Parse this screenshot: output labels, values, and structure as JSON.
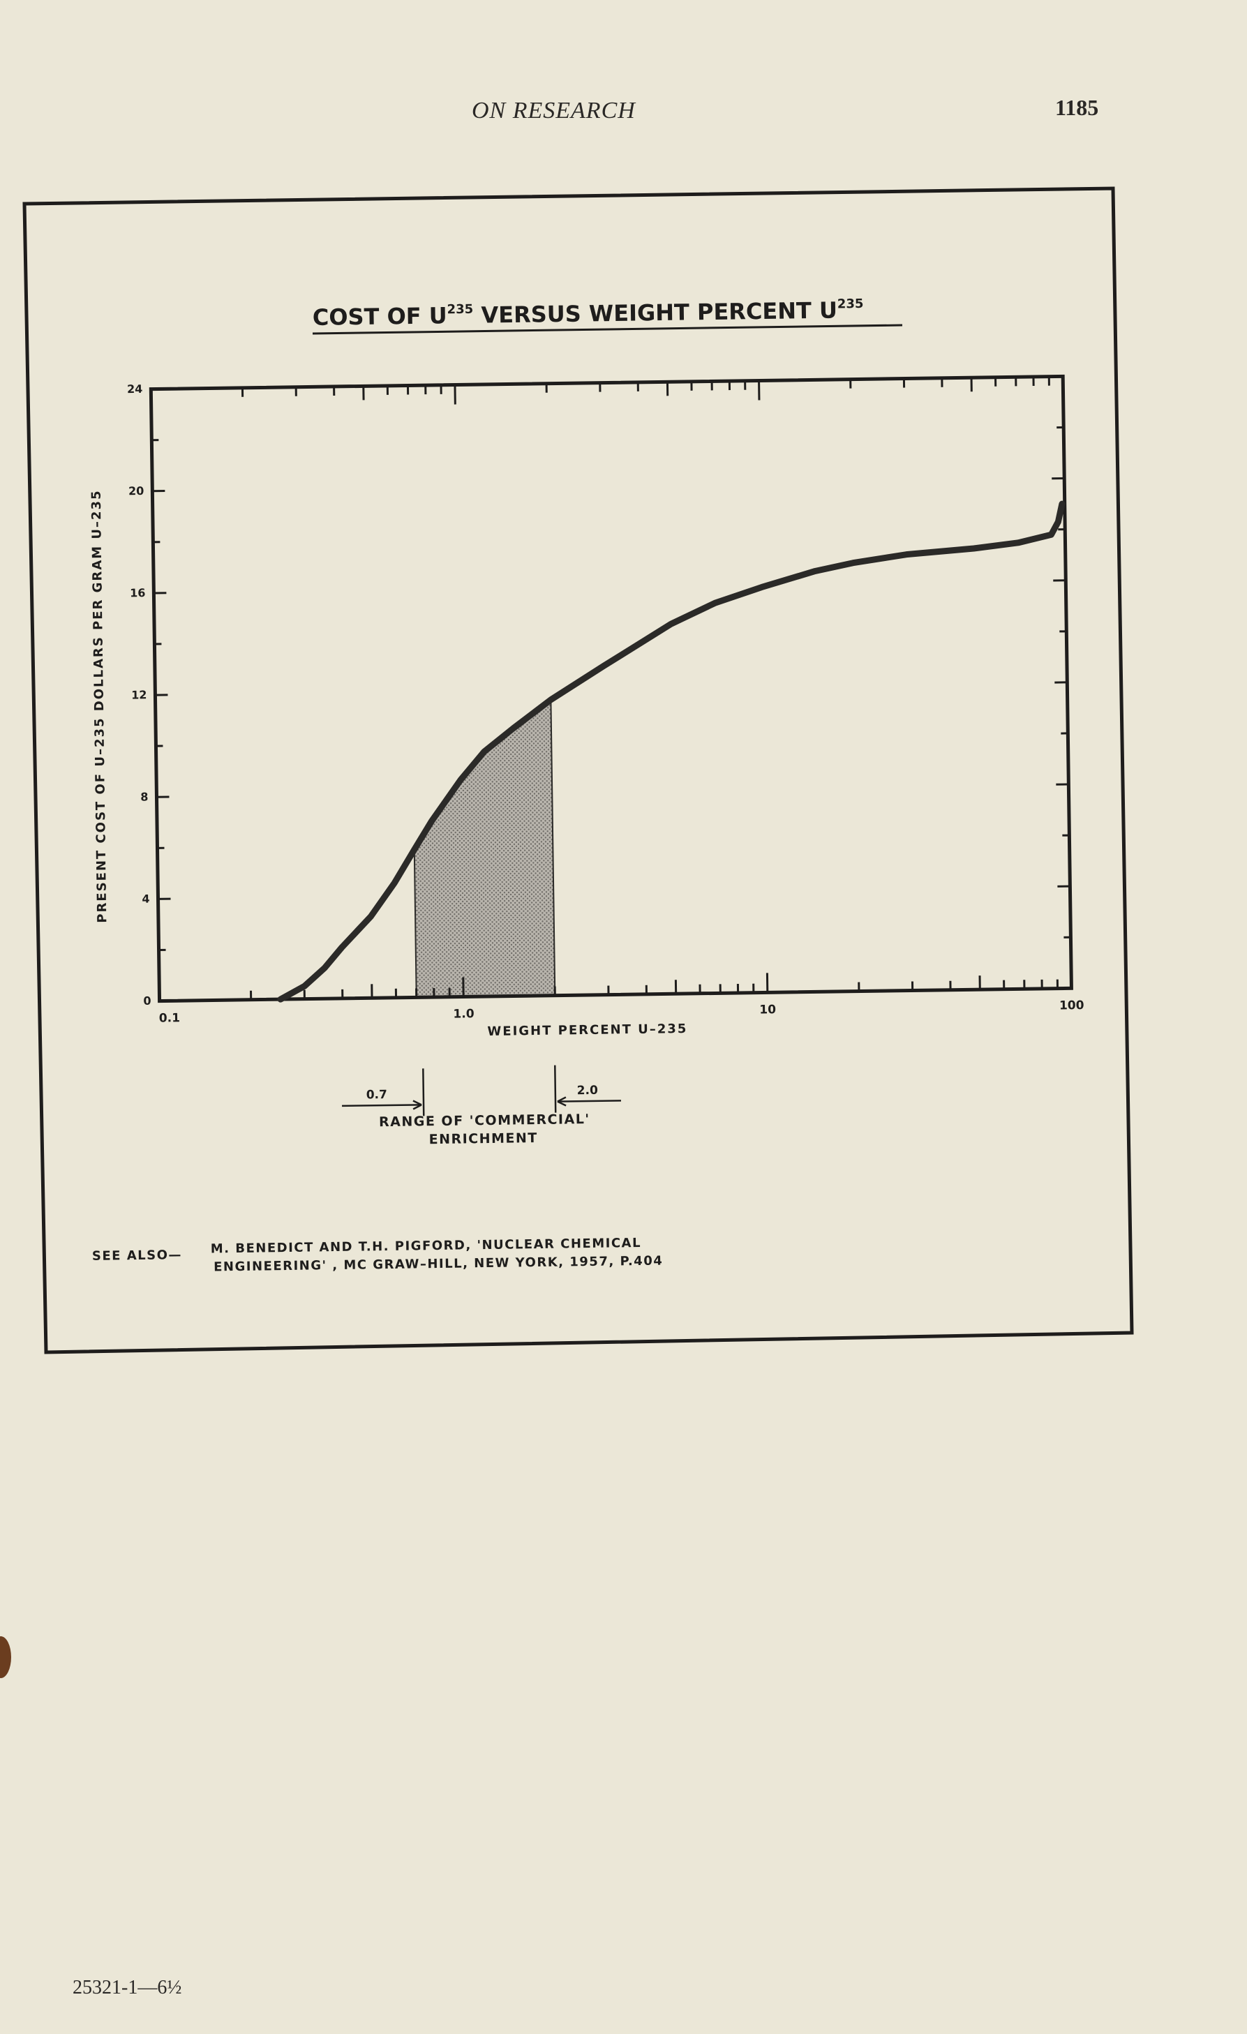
{
  "header": {
    "running_head": "ON RESEARCH",
    "page_number": "1185"
  },
  "footer": {
    "code": "25321-1—6½"
  },
  "figure": {
    "title_main": "COST OF U",
    "title_sup": "235",
    "title_mid": " VERSUS WEIGHT PERCENT  U",
    "title_sup2": "235",
    "see_also_prefix": "SEE ALSO—",
    "see_also_line1": "M. BENEDICT AND T.H. PIGFORD, 'NUCLEAR CHEMICAL",
    "see_also_line2": "ENGINEERING' , MC GRAW–HILL, NEW YORK, 1957, P.404",
    "range_caption_line1": "RANGE OF 'COMMERCIAL'",
    "range_caption_line2": "ENRICHMENT",
    "range_low_label": "0.7",
    "range_high_label": "2.0"
  },
  "chart_data": {
    "type": "line",
    "title": "COST OF U235 VERSUS WEIGHT PERCENT U235",
    "xlabel": "WEIGHT PERCENT U–235",
    "ylabel": "PRESENT COST OF U–235 DOLLARS PER GRAM U–235",
    "x_scale": "log",
    "xlim": [
      0.1,
      100
    ],
    "ylim": [
      0,
      24
    ],
    "x_tick_labels": [
      "0.1",
      "1.0",
      "10",
      "100"
    ],
    "x_tick_values": [
      0.1,
      1.0,
      10,
      100
    ],
    "y_tick_labels": [
      "0",
      "4",
      "8",
      "12",
      "16",
      "20",
      "24"
    ],
    "y_tick_values": [
      0,
      4,
      8,
      12,
      16,
      20,
      24
    ],
    "shaded_region": {
      "x_start": 0.7,
      "x_end": 2.0,
      "label": "RANGE OF 'COMMERCIAL' ENRICHMENT"
    },
    "series": [
      {
        "x": [
          0.25,
          0.3,
          0.35,
          0.4,
          0.5,
          0.6,
          0.7,
          0.8,
          1.0,
          1.2,
          1.5,
          2.0,
          3.0,
          4.0,
          5.0,
          7.0,
          10,
          15,
          20,
          30,
          50,
          70,
          90,
          95,
          98
        ],
        "y": [
          0,
          0.5,
          1.2,
          2.0,
          3.2,
          4.5,
          5.8,
          6.9,
          8.5,
          9.6,
          10.5,
          11.6,
          12.9,
          13.8,
          14.5,
          15.3,
          15.9,
          16.5,
          16.8,
          17.1,
          17.3,
          17.5,
          17.8,
          18.3,
          19.0
        ]
      }
    ],
    "grid": false,
    "colors": {
      "curve": "#2b2a28",
      "shading": "#8f8c86",
      "frame": "#1e1d1c"
    }
  }
}
